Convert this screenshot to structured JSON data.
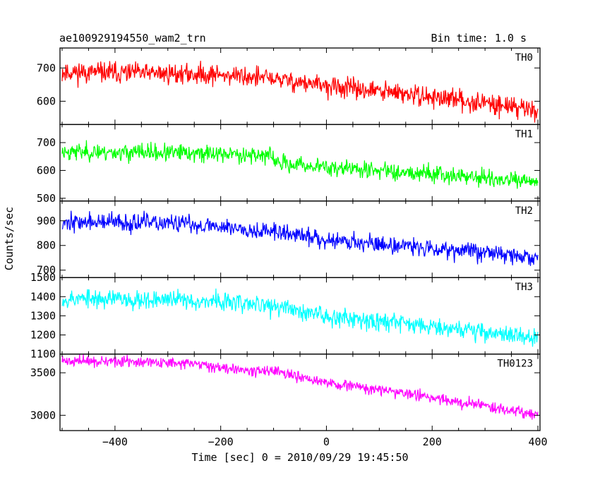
{
  "header": {
    "title": "ae100929194550_wam2_trn",
    "bin_time": "Bin time: 1.0 s"
  },
  "chart_data": {
    "type": "line",
    "title": "ae100929194550_wam2_trn",
    "subtitle": "Bin time: 1.0 s",
    "xlabel": "Time [sec] 0 = 2010/09/29 19:45:50",
    "ylabel": "Counts/sec",
    "xlim": [
      -504,
      404
    ],
    "x_ticks": [
      -400,
      -200,
      0,
      200,
      400
    ],
    "x_tick_labels": [
      "−400",
      "−200",
      "0",
      "200",
      "400"
    ],
    "grid": false,
    "series": [
      {
        "name": "TH0",
        "color": "#ff0000",
        "ylim": [
          530,
          760
        ],
        "y_ticks": [
          600,
          700
        ],
        "y_tick_labels": [
          "600",
          "700"
        ],
        "trend_x": [
          -500,
          -200,
          -100,
          0,
          100,
          200,
          300,
          400
        ],
        "trend_y": [
          688,
          680,
          668,
          645,
          630,
          612,
          595,
          575
        ],
        "noise_sd": 22,
        "n_points": 900,
        "seed": 11
      },
      {
        "name": "TH1",
        "color": "#00ff00",
        "ylim": [
          490,
          765
        ],
        "y_ticks": [
          500,
          600,
          700
        ],
        "y_tick_labels": [
          "500",
          "600",
          "700"
        ],
        "trend_x": [
          -500,
          -200,
          -110,
          -90,
          0,
          100,
          200,
          300,
          400
        ],
        "trend_y": [
          668,
          660,
          655,
          625,
          612,
          600,
          590,
          572,
          555
        ],
        "noise_sd": 22,
        "n_points": 900,
        "seed": 23
      },
      {
        "name": "TH2",
        "color": "#0000ff",
        "ylim": [
          670,
          980
        ],
        "y_ticks": [
          700,
          800,
          900
        ],
        "y_tick_labels": [
          "700",
          "800",
          "900"
        ],
        "trend_x": [
          -500,
          -300,
          -200,
          -100,
          0,
          100,
          200,
          300,
          400
        ],
        "trend_y": [
          895,
          890,
          878,
          855,
          825,
          805,
          790,
          775,
          745
        ],
        "noise_sd": 26,
        "n_points": 900,
        "seed": 37
      },
      {
        "name": "TH3",
        "color": "#00ffff",
        "ylim": [
          1100,
          1500
        ],
        "y_ticks": [
          1100,
          1200,
          1300,
          1400,
          1500
        ],
        "y_tick_labels": [
          "1100",
          "1200",
          "1300",
          "1400",
          "1500"
        ],
        "trend_x": [
          -500,
          -300,
          -200,
          -100,
          0,
          100,
          200,
          300,
          400
        ],
        "trend_y": [
          1390,
          1385,
          1375,
          1350,
          1300,
          1275,
          1250,
          1215,
          1185
        ],
        "noise_sd": 35,
        "n_points": 900,
        "seed": 53
      },
      {
        "name": "TH0123",
        "color": "#ff00ff",
        "ylim": [
          2820,
          3720
        ],
        "y_ticks": [
          3000,
          3500
        ],
        "y_tick_labels": [
          "3000",
          "3500"
        ],
        "trend_x": [
          -500,
          -300,
          -200,
          -100,
          0,
          100,
          200,
          300,
          400
        ],
        "trend_y": [
          3640,
          3620,
          3570,
          3510,
          3380,
          3300,
          3210,
          3110,
          3010
        ],
        "noise_sd": 45,
        "n_points": 900,
        "seed": 71
      }
    ]
  }
}
